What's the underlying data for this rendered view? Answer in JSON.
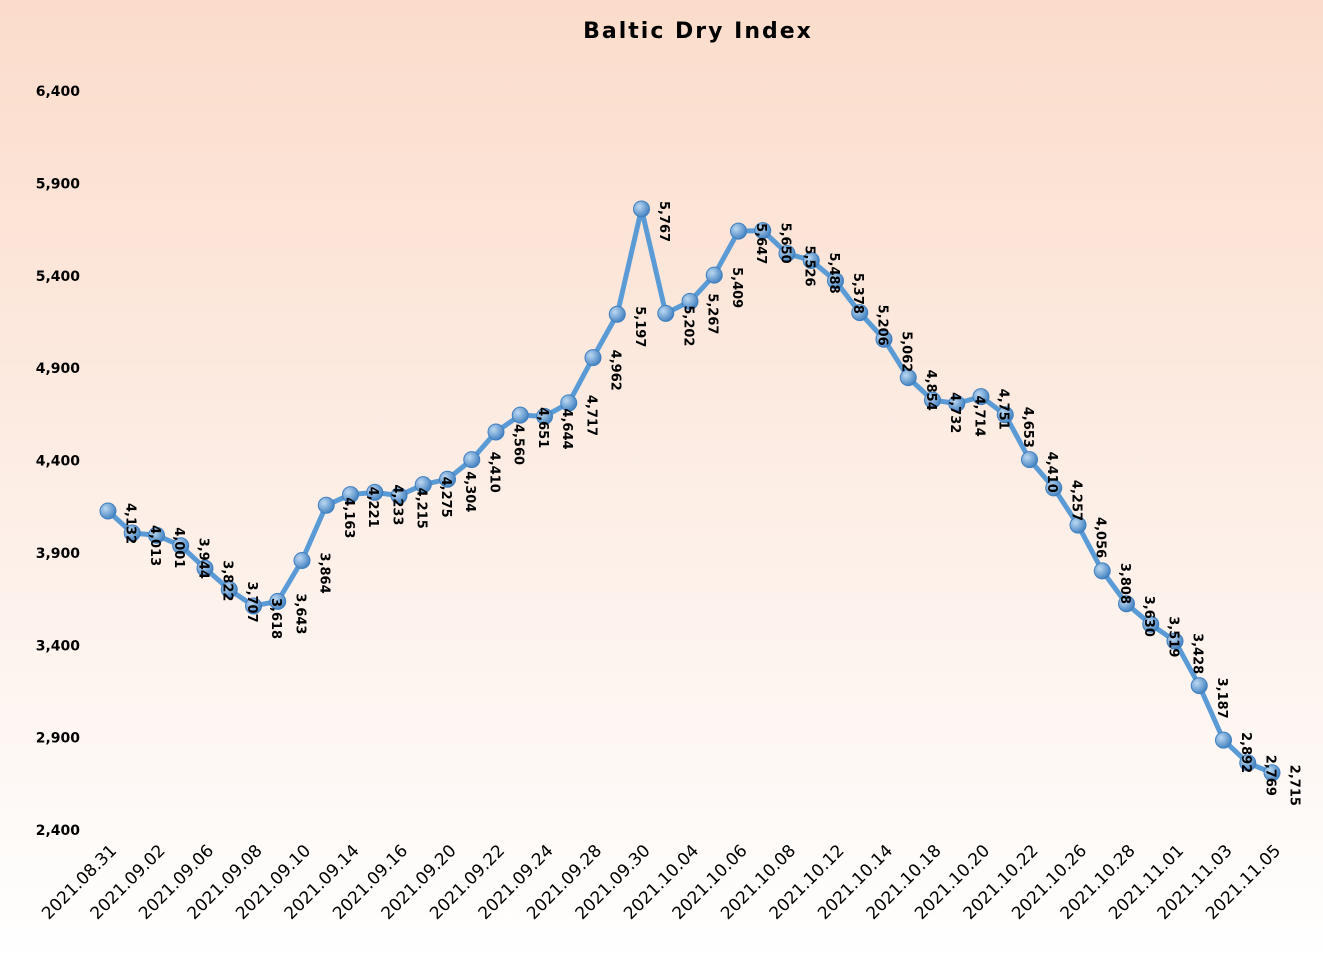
{
  "chart_data": {
    "type": "line",
    "title": "Baltic Dry Index",
    "categories": [
      "2021.08.31",
      null,
      "2021.09.02",
      null,
      "2021.09.06",
      null,
      "2021.09.08",
      null,
      "2021.09.10",
      null,
      "2021.09.14",
      null,
      "2021.09.16",
      null,
      "2021.09.20",
      null,
      "2021.09.22",
      null,
      "2021.09.24",
      null,
      "2021.09.28",
      null,
      "2021.09.30",
      null,
      "2021.10.04",
      null,
      "2021.10.06",
      null,
      "2021.10.08",
      null,
      "2021.10.12",
      null,
      "2021.10.14",
      null,
      "2021.10.18",
      null,
      "2021.10.20",
      null,
      "2021.10.22",
      null,
      "2021.10.26",
      null,
      "2021.10.28",
      null,
      "2021.11.01",
      null,
      "2021.11.03",
      null,
      "2021.11.05"
    ],
    "series": [
      {
        "name": "Baltic Dry Index",
        "color": "#5b9bd5",
        "values": [
          4132,
          4013,
          4001,
          3944,
          3822,
          3707,
          3618,
          3643,
          3864,
          4163,
          4221,
          4233,
          4215,
          4275,
          4304,
          4410,
          4560,
          4651,
          4644,
          4717,
          4962,
          5197,
          5767,
          5202,
          5267,
          5409,
          5647,
          5650,
          5526,
          5488,
          5378,
          5206,
          5062,
          4854,
          4732,
          4714,
          4751,
          4653,
          4410,
          4257,
          4056,
          3808,
          3630,
          3519,
          3428,
          3187,
          2892,
          2769,
          2715
        ],
        "value_labels": [
          "4,132",
          "4,013",
          "4,001",
          "3,944",
          "3,822",
          "3,707",
          "3,618",
          "3,643",
          "3,864",
          "4,163",
          "4,221",
          "4,233",
          "4,215",
          "4,275",
          "4,304",
          "4,410",
          "4,560",
          "4,651",
          "4,644",
          "4,717",
          "4,962",
          "5,197",
          "5,767",
          "5,202",
          "5,267",
          "5,409",
          "5,647",
          "5,650",
          "5,526",
          "5,488",
          "5,378",
          "5,206",
          "5,062",
          "4,854",
          "4,732",
          "4,714",
          "4,751",
          "4,653",
          "4,410",
          "4,257",
          "4,056",
          "3,808",
          "3,630",
          "3,519",
          "3,428",
          "3,187",
          "2,892",
          "2,769",
          "2,715"
        ]
      }
    ],
    "ylim": [
      2400,
      6400
    ],
    "yticks": [
      {
        "value": 2400,
        "label": "2,400"
      },
      {
        "value": 2900,
        "label": "2,900"
      },
      {
        "value": 3400,
        "label": "3,400"
      },
      {
        "value": 3900,
        "label": "3,900"
      },
      {
        "value": 4400,
        "label": "4,400"
      },
      {
        "value": 4900,
        "label": "4,900"
      },
      {
        "value": 5400,
        "label": "5,400"
      },
      {
        "value": 5900,
        "label": "5,900"
      },
      {
        "value": 6400,
        "label": "6,400"
      }
    ],
    "grid": false
  }
}
